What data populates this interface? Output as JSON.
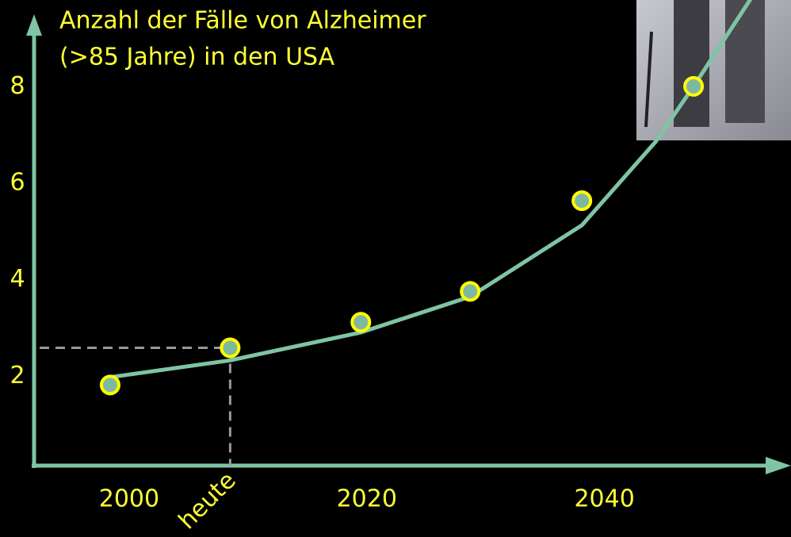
{
  "chart_data": {
    "type": "scatter",
    "title": [
      "Anzahl der Fälle von Alzheimer",
      "(>85 Jahre) in den USA"
    ],
    "series": [
      {
        "color": "#7fb8a0",
        "x": [
          1998.4,
          2008.5,
          2019.5,
          2028.7,
          2038.1,
          2047.5
        ],
        "values": [
          1.82,
          2.59,
          3.12,
          3.76,
          5.64,
          8.01
        ]
      },
      {
        "color": "#7fc4a4",
        "x": [
          1998.4,
          2008.5,
          2019.5,
          2028.7,
          2038.1,
          2044.3,
          2047.5,
          2052.3
        ],
        "values": [
          1.98,
          2.33,
          2.91,
          3.65,
          5.13,
          6.86,
          8.01,
          9.82
        ]
      }
    ],
    "xlim": [
      1992,
      2055.7
    ],
    "ylim": [
      0,
      9.8
    ],
    "xticks": [
      2000,
      {
        "value": 2008.5,
        "label": "heute"
      },
      2020,
      2040
    ],
    "yticks": [
      2,
      4,
      6,
      8
    ]
  }
}
